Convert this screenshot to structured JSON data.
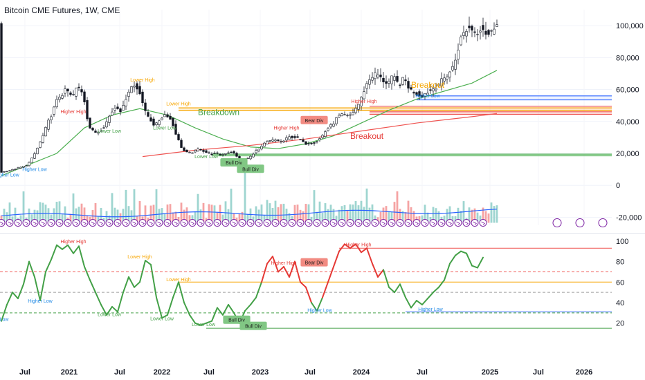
{
  "header": {
    "title": "Bitcoin CME Futures, 1W, CME"
  },
  "colors": {
    "up": "#131722",
    "down": "#131722",
    "ma_green": "#4caf50",
    "ma_red": "#ef5350",
    "support_green": "#4caf50",
    "resistance_red": "#ef5350",
    "orange_zone": "#f7a600",
    "blue_zone": "#2962ff",
    "rsi_green": "#43a047",
    "rsi_red": "#e53935",
    "vol_up": "#9ed5d0",
    "vol_down": "#f5a3a3",
    "vol_line": "#2962ff",
    "signal_purple": "#7b1fa2"
  },
  "chart_data": [
    {
      "type": "candlestick",
      "title": "Bitcoin CME Futures, 1W, CME",
      "x_axis": {
        "ticks": [
          "Jul",
          "2021",
          "Jul",
          "2022",
          "Jul",
          "2023",
          "Jul",
          "2024",
          "Jul",
          "2025",
          "Jul",
          "2026"
        ]
      },
      "y_axis": {
        "side": "right",
        "range": [
          -25000,
          110000
        ],
        "ticks": [
          "100,000",
          "80,000",
          "60,000",
          "40,000",
          "20,000",
          "0",
          "-20,000"
        ]
      },
      "price_path": [
        [
          0,
          8000
        ],
        [
          4,
          9500
        ],
        [
          8,
          11500
        ],
        [
          10,
          13000
        ],
        [
          12,
          18000
        ],
        [
          14,
          25000
        ],
        [
          16,
          33000
        ],
        [
          17,
          38000
        ],
        [
          19,
          46000
        ],
        [
          21,
          55000
        ],
        [
          23,
          58000
        ],
        [
          24,
          60000
        ],
        [
          26,
          55000
        ],
        [
          28,
          62000
        ],
        [
          30,
          58000
        ],
        [
          31,
          48000
        ],
        [
          32,
          37000
        ],
        [
          34,
          33000
        ],
        [
          36,
          34000
        ],
        [
          38,
          38000
        ],
        [
          40,
          45000
        ],
        [
          42,
          50000
        ],
        [
          44,
          46000
        ],
        [
          46,
          58000
        ],
        [
          48,
          63000
        ],
        [
          50,
          60000
        ],
        [
          51,
          57000
        ],
        [
          52,
          47000
        ],
        [
          54,
          42000
        ],
        [
          56,
          37000
        ],
        [
          58,
          42000
        ],
        [
          60,
          45000
        ],
        [
          62,
          40000
        ],
        [
          64,
          30000
        ],
        [
          66,
          22000
        ],
        [
          68,
          20000
        ],
        [
          70,
          21000
        ],
        [
          72,
          23000
        ],
        [
          74,
          21000
        ],
        [
          76,
          19500
        ],
        [
          78,
          20000
        ],
        [
          80,
          19000
        ],
        [
          82,
          20500
        ],
        [
          84,
          21000
        ],
        [
          86,
          17000
        ],
        [
          88,
          16500
        ],
        [
          90,
          17000
        ],
        [
          92,
          21000
        ],
        [
          94,
          23000
        ],
        [
          96,
          27000
        ],
        [
          98,
          28000
        ],
        [
          100,
          28500
        ],
        [
          102,
          27000
        ],
        [
          104,
          30000
        ],
        [
          106,
          30500
        ],
        [
          108,
          29000
        ],
        [
          110,
          26000
        ],
        [
          112,
          26500
        ],
        [
          114,
          27000
        ],
        [
          116,
          30000
        ],
        [
          118,
          35000
        ],
        [
          120,
          38000
        ],
        [
          122,
          43000
        ],
        [
          124,
          44000
        ],
        [
          126,
          43000
        ],
        [
          128,
          47000
        ],
        [
          130,
          52000
        ],
        [
          132,
          62000
        ],
        [
          134,
          68000
        ],
        [
          136,
          70000
        ],
        [
          138,
          66000
        ],
        [
          140,
          64000
        ],
        [
          142,
          68000
        ],
        [
          144,
          63000
        ],
        [
          146,
          67000
        ],
        [
          148,
          60000
        ],
        [
          150,
          58000
        ],
        [
          152,
          56000
        ],
        [
          154,
          58000
        ],
        [
          156,
          60000
        ],
        [
          158,
          63000
        ],
        [
          160,
          66000
        ],
        [
          162,
          70000
        ],
        [
          164,
          75000
        ],
        [
          166,
          90000
        ],
        [
          168,
          97000
        ],
        [
          170,
          99000
        ],
        [
          172,
          95000
        ],
        [
          174,
          100000
        ],
        [
          176,
          94000
        ],
        [
          178,
          96000
        ],
        [
          179,
          103000
        ]
      ],
      "ma_green": [
        [
          0,
          6000
        ],
        [
          20,
          20000
        ],
        [
          30,
          36000
        ],
        [
          40,
          44000
        ],
        [
          50,
          48000
        ],
        [
          60,
          44000
        ],
        [
          70,
          36000
        ],
        [
          80,
          29000
        ],
        [
          90,
          24000
        ],
        [
          100,
          23000
        ],
        [
          110,
          26000
        ],
        [
          120,
          31000
        ],
        [
          130,
          39000
        ],
        [
          140,
          47000
        ],
        [
          150,
          54000
        ],
        [
          160,
          59000
        ],
        [
          170,
          64000
        ],
        [
          179,
          72000
        ]
      ],
      "ma_red": [
        [
          51,
          18000
        ],
        [
          70,
          22000
        ],
        [
          90,
          25000
        ],
        [
          110,
          29000
        ],
        [
          130,
          34000
        ],
        [
          150,
          39000
        ],
        [
          170,
          43000
        ],
        [
          179,
          45000
        ]
      ],
      "hlines": [
        {
          "y": 56000,
          "x0": 150,
          "color": "#2962ff"
        },
        {
          "y": 53500,
          "x0": 150,
          "color": "#2962ff"
        },
        {
          "y": 49500,
          "x0": 133,
          "color": "#ef5350"
        },
        {
          "y": 48500,
          "x0": 64,
          "color": "#f7a600"
        },
        {
          "y": 47000,
          "x0": 64,
          "color": "#f7a600"
        },
        {
          "y": 46000,
          "x0": 133,
          "color": "#ef5350"
        },
        {
          "y": 44500,
          "x0": 133,
          "color": "#ef5350"
        },
        {
          "y": 19500,
          "x0": 76,
          "color": "#4caf50"
        },
        {
          "y": 18500,
          "x0": 76,
          "color": "#4caf50"
        }
      ],
      "labels": [
        {
          "text": "Higher High",
          "x": 26,
          "y": 45000,
          "color": "#e53935"
        },
        {
          "text": "Lower High",
          "x": 51,
          "y": 65000,
          "color": "#f7a600"
        },
        {
          "text": "Lower Low",
          "x": 39,
          "y": 33000,
          "color": "#43a047"
        },
        {
          "text": "Lower Low",
          "x": 59,
          "y": 35000,
          "color": "#43a047"
        },
        {
          "text": "Lower High",
          "x": 64,
          "y": 50000,
          "color": "#f7a600"
        },
        {
          "text": "Lower Low",
          "x": 74,
          "y": 17000,
          "color": "#43a047"
        },
        {
          "text": "Higher High",
          "x": 103,
          "y": 35000,
          "color": "#e53935"
        },
        {
          "text": "Higher High",
          "x": 131,
          "y": 51500,
          "color": "#e53935"
        },
        {
          "text": "Higher Low",
          "x": 154,
          "y": 55000,
          "color": "#1e88e5"
        },
        {
          "text": "Higher Low",
          "x": 12,
          "y": 9000,
          "color": "#1e88e5"
        },
        {
          "text": "Higher Low",
          "x": 2,
          "y": 5500,
          "color": "#1e88e5"
        }
      ],
      "tags": [
        {
          "text": "Bull Div",
          "x": 84,
          "y": 13500,
          "color": "#81c784"
        },
        {
          "text": "Bull Div",
          "x": 90,
          "y": 9500,
          "color": "#81c784"
        },
        {
          "text": "Bear Div",
          "x": 113,
          "y": 40000,
          "color": "#f28b82"
        }
      ],
      "zones": [
        {
          "text": "Breakdown",
          "x": 71,
          "y": 44000,
          "color": "#43a047"
        },
        {
          "text": "Breakout",
          "x": 126,
          "y": 29000,
          "color": "#e53935"
        },
        {
          "text": "Breakout",
          "x": 148,
          "y": 61000,
          "color": "#f7a600"
        }
      ]
    },
    {
      "type": "line",
      "title": "",
      "y_axis": {
        "side": "right",
        "range": [
          5,
          108
        ],
        "ticks": [
          "100",
          "80",
          "60",
          "40",
          "20"
        ]
      },
      "rsi": [
        [
          0,
          22
        ],
        [
          2,
          38
        ],
        [
          4,
          50
        ],
        [
          6,
          44
        ],
        [
          8,
          58
        ],
        [
          10,
          80
        ],
        [
          12,
          65
        ],
        [
          14,
          42
        ],
        [
          16,
          70
        ],
        [
          18,
          82
        ],
        [
          20,
          96
        ],
        [
          22,
          92
        ],
        [
          24,
          96
        ],
        [
          26,
          88
        ],
        [
          28,
          95
        ],
        [
          30,
          75
        ],
        [
          32,
          62
        ],
        [
          34,
          50
        ],
        [
          36,
          38
        ],
        [
          38,
          28
        ],
        [
          40,
          36
        ],
        [
          42,
          31
        ],
        [
          44,
          50
        ],
        [
          46,
          65
        ],
        [
          48,
          55
        ],
        [
          50,
          60
        ],
        [
          52,
          81
        ],
        [
          54,
          77
        ],
        [
          56,
          45
        ],
        [
          58,
          25
        ],
        [
          60,
          28
        ],
        [
          62,
          45
        ],
        [
          64,
          60
        ],
        [
          66,
          40
        ],
        [
          68,
          28
        ],
        [
          70,
          20
        ],
        [
          72,
          18
        ],
        [
          74,
          20
        ],
        [
          76,
          22
        ],
        [
          78,
          35
        ],
        [
          80,
          28
        ],
        [
          82,
          38
        ],
        [
          84,
          30
        ],
        [
          86,
          20
        ],
        [
          88,
          32
        ],
        [
          90,
          38
        ],
        [
          92,
          45
        ],
        [
          94,
          60
        ],
        [
          96,
          78
        ],
        [
          98,
          85
        ],
        [
          100,
          70
        ],
        [
          102,
          75
        ],
        [
          104,
          65
        ],
        [
          106,
          80
        ],
        [
          108,
          60
        ],
        [
          110,
          55
        ],
        [
          112,
          40
        ],
        [
          114,
          32
        ],
        [
          116,
          45
        ],
        [
          118,
          60
        ],
        [
          120,
          75
        ],
        [
          122,
          90
        ],
        [
          124,
          97
        ],
        [
          126,
          93
        ],
        [
          128,
          97
        ],
        [
          130,
          89
        ],
        [
          132,
          93
        ],
        [
          134,
          78
        ],
        [
          136,
          65
        ],
        [
          138,
          72
        ],
        [
          140,
          55
        ],
        [
          142,
          50
        ],
        [
          144,
          58
        ],
        [
          146,
          45
        ],
        [
          148,
          35
        ],
        [
          150,
          42
        ],
        [
          152,
          38
        ],
        [
          154,
          44
        ],
        [
          156,
          50
        ],
        [
          158,
          55
        ],
        [
          160,
          62
        ],
        [
          162,
          78
        ],
        [
          164,
          86
        ],
        [
          166,
          90
        ],
        [
          168,
          88
        ],
        [
          170,
          76
        ],
        [
          172,
          74
        ],
        [
          174,
          84
        ]
      ],
      "rsi_red_ranges": [
        [
          94,
          112
        ],
        [
          116,
          138
        ]
      ],
      "hlines": [
        {
          "y": 93,
          "x0": 122,
          "color": "#ef5350",
          "dash": false
        },
        {
          "y": 70,
          "x0": 0,
          "color": "#ef5350",
          "dash": true
        },
        {
          "y": 60,
          "x0": 64,
          "color": "#f7a600",
          "dash": false
        },
        {
          "y": 50,
          "x0": 0,
          "color": "#9e9e9e",
          "dash": true
        },
        {
          "y": 31,
          "x0": 146,
          "color": "#2962ff",
          "dash": false
        },
        {
          "y": 30,
          "x0": 0,
          "color": "#43a047",
          "dash": true
        },
        {
          "y": 15,
          "x0": 74,
          "color": "#43a047",
          "dash": false
        }
      ],
      "labels": [
        {
          "text": "Higher High",
          "x": 26,
          "y": 98,
          "color": "#e53935"
        },
        {
          "text": "Lower High",
          "x": 50,
          "y": 83,
          "color": "#f7a600"
        },
        {
          "text": "Higher Low",
          "x": 14,
          "y": 40,
          "color": "#1e88e5"
        },
        {
          "text": "Lower Low",
          "x": 39,
          "y": 27,
          "color": "#43a047"
        },
        {
          "text": "Lower Low",
          "x": 58,
          "y": 23,
          "color": "#43a047"
        },
        {
          "text": "Lower High",
          "x": 64,
          "y": 61,
          "color": "#f7a600"
        },
        {
          "text": "Lower Low",
          "x": 73,
          "y": 17,
          "color": "#43a047"
        },
        {
          "text": "Higher High",
          "x": 102,
          "y": 77,
          "color": "#e53935"
        },
        {
          "text": "Higher Low",
          "x": 115,
          "y": 31,
          "color": "#1e88e5"
        },
        {
          "text": "Higher High",
          "x": 129,
          "y": 95,
          "color": "#e53935"
        },
        {
          "text": "Higher Low",
          "x": 155,
          "y": 32,
          "color": "#1e88e5"
        },
        {
          "text": "Low",
          "x": 1,
          "y": 22,
          "color": "#1e88e5"
        }
      ],
      "tags": [
        {
          "text": "Bull Div",
          "x": 85,
          "y": 22,
          "color": "#81c784"
        },
        {
          "text": "Bull Div",
          "x": 91,
          "y": 16,
          "color": "#81c784"
        },
        {
          "text": "Bear Div",
          "x": 113,
          "y": 78,
          "color": "#f28b82"
        }
      ]
    }
  ]
}
